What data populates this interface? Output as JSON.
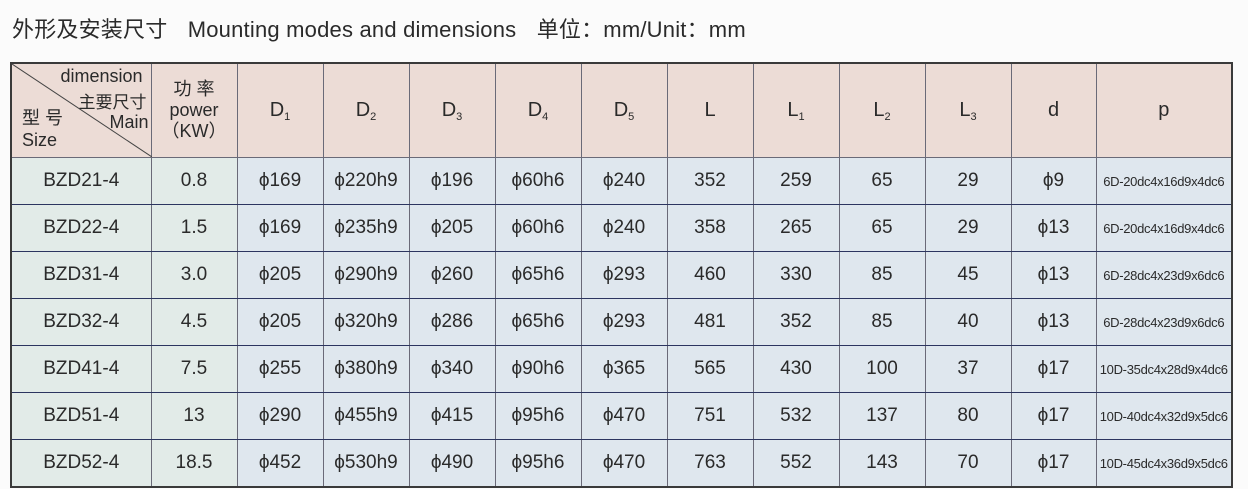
{
  "title": {
    "cn": "外形及安装尺寸",
    "en": "Mounting modes and dimensions",
    "unit": "单位：mm/Unit：mm"
  },
  "header": {
    "corner": {
      "dimension": "dimension",
      "main_cn": "主要尺寸",
      "main": "Main",
      "size_cn": "型 号",
      "size": "Size"
    },
    "power": {
      "cn": "功 率",
      "en": "power",
      "unit": "（KW）"
    },
    "columns": [
      {
        "base": "D",
        "sub": "1"
      },
      {
        "base": "D",
        "sub": "2"
      },
      {
        "base": "D",
        "sub": "3"
      },
      {
        "base": "D",
        "sub": "4"
      },
      {
        "base": "D",
        "sub": "5"
      },
      {
        "base": "L",
        "sub": ""
      },
      {
        "base": "L",
        "sub": "1"
      },
      {
        "base": "L",
        "sub": "2"
      },
      {
        "base": "L",
        "sub": "3"
      },
      {
        "base": "d",
        "sub": ""
      },
      {
        "base": "p",
        "sub": ""
      }
    ]
  },
  "rows": [
    [
      "BZD21-4",
      "0.8",
      "ϕ169",
      "ϕ220h9",
      "ϕ196",
      "ϕ60h6",
      "ϕ240",
      "352",
      "259",
      "65",
      "29",
      "ϕ9",
      "6D-20dc4x16d9x4dc6"
    ],
    [
      "BZD22-4",
      "1.5",
      "ϕ169",
      "ϕ235h9",
      "ϕ205",
      "ϕ60h6",
      "ϕ240",
      "358",
      "265",
      "65",
      "29",
      "ϕ13",
      "6D-20dc4x16d9x4dc6"
    ],
    [
      "BZD31-4",
      "3.0",
      "ϕ205",
      "ϕ290h9",
      "ϕ260",
      "ϕ65h6",
      "ϕ293",
      "460",
      "330",
      "85",
      "45",
      "ϕ13",
      "6D-28dc4x23d9x6dc6"
    ],
    [
      "BZD32-4",
      "4.5",
      "ϕ205",
      "ϕ320h9",
      "ϕ286",
      "ϕ65h6",
      "ϕ293",
      "481",
      "352",
      "85",
      "40",
      "ϕ13",
      "6D-28dc4x23d9x6dc6"
    ],
    [
      "BZD41-4",
      "7.5",
      "ϕ255",
      "ϕ380h9",
      "ϕ340",
      "ϕ90h6",
      "ϕ365",
      "565",
      "430",
      "100",
      "37",
      "ϕ17",
      "10D-35dc4x28d9x4dc6"
    ],
    [
      "BZD51-4",
      "13",
      "ϕ290",
      "ϕ455h9",
      "ϕ415",
      "ϕ95h6",
      "ϕ470",
      "751",
      "532",
      "137",
      "80",
      "ϕ17",
      "10D-40dc4x32d9x5dc6"
    ],
    [
      "BZD52-4",
      "18.5",
      "ϕ452",
      "ϕ530h9",
      "ϕ490",
      "ϕ95h6",
      "ϕ470",
      "763",
      "552",
      "143",
      "70",
      "ϕ17",
      "10D-45dc4x36d9x5dc6"
    ]
  ]
}
